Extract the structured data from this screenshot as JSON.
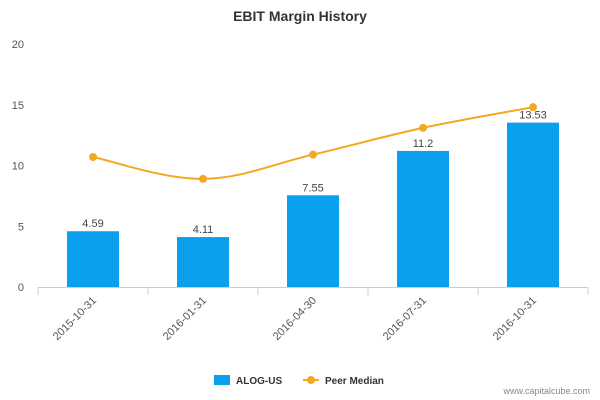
{
  "chart_data": {
    "type": "bar",
    "title": "EBIT Margin History",
    "categories": [
      "2015-10-31",
      "2016-01-31",
      "2016-04-30",
      "2016-07-31",
      "2016-10-31"
    ],
    "series": [
      {
        "name": "ALOG-US",
        "type": "bar",
        "color": "#0aa0ee",
        "values": [
          4.59,
          4.11,
          7.55,
          11.2,
          13.53
        ],
        "labels": [
          "4.59",
          "4.11",
          "7.55",
          "11.2",
          "13.53"
        ]
      },
      {
        "name": "Peer Median",
        "type": "line",
        "color": "#f5a623",
        "values": [
          10.7,
          8.9,
          10.9,
          13.1,
          14.8
        ]
      }
    ],
    "ylim": [
      0,
      20
    ],
    "yticks": [
      "0",
      "5",
      "10",
      "15",
      "20"
    ],
    "legend_position": "bottom-center",
    "grid": false
  },
  "credit": "www.capitalcube.com"
}
